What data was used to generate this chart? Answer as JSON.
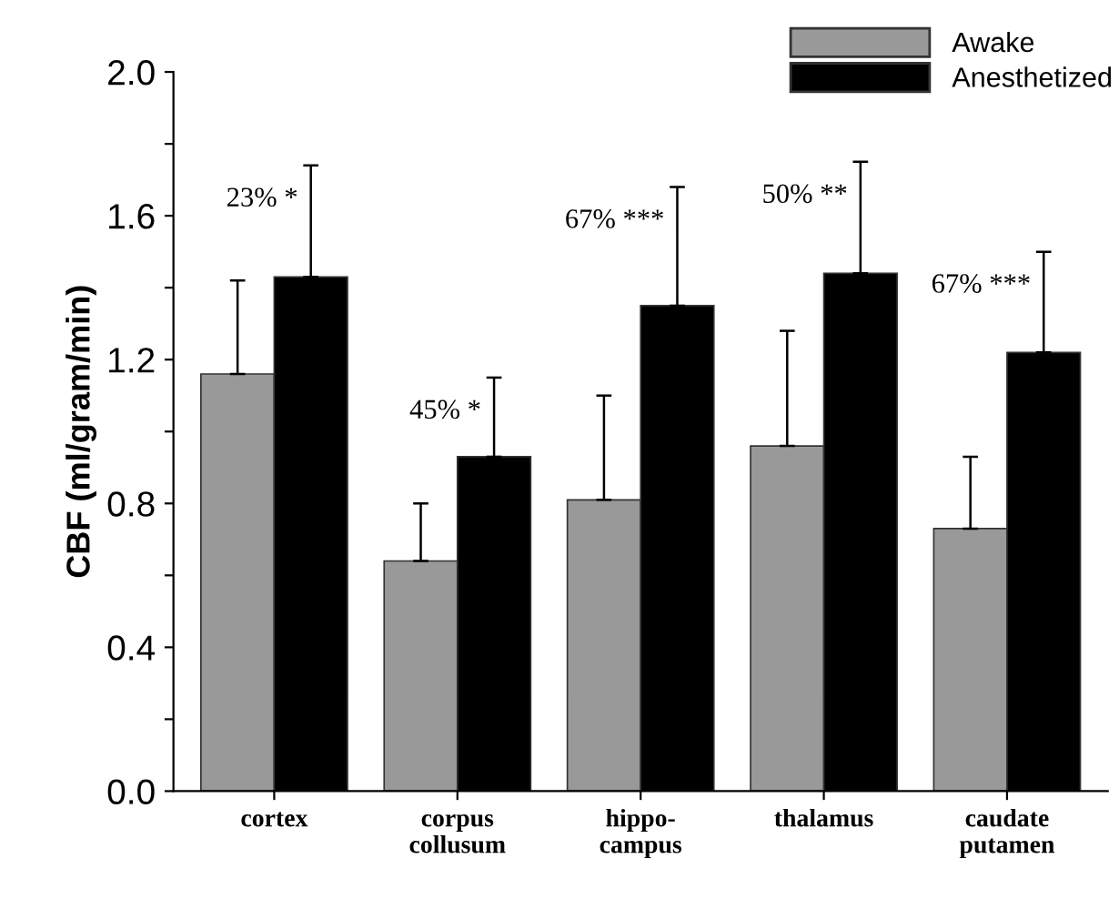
{
  "chart_data": {
    "type": "bar",
    "ylabel": "CBF (ml/gram/min)",
    "categories": [
      "cortex",
      "corpus\ncollusum",
      "hippo-\ncampus",
      "thalamus",
      "caudate\nputamen"
    ],
    "series": [
      {
        "name": "Awake",
        "color": "#999999",
        "values": [
          1.16,
          0.64,
          0.81,
          0.96,
          0.73
        ],
        "errors": [
          [
            1.16,
            1.42
          ],
          [
            0.64,
            0.8
          ],
          [
            0.81,
            1.1
          ],
          [
            0.96,
            1.28
          ],
          [
            0.73,
            0.93
          ]
        ]
      },
      {
        "name": "Anesthetized",
        "color": "#000000",
        "values": [
          1.43,
          0.93,
          1.35,
          1.44,
          1.22
        ],
        "errors": [
          [
            1.43,
            1.74
          ],
          [
            0.93,
            1.15
          ],
          [
            1.35,
            1.68
          ],
          [
            1.44,
            1.75
          ],
          [
            1.22,
            1.5
          ]
        ]
      }
    ],
    "ylim": [
      0,
      2.0
    ],
    "yticks": [
      {
        "value": 0,
        "label": "0.0"
      },
      {
        "value": 0.2,
        "label": null
      },
      {
        "value": 0.4,
        "label": "0.4"
      },
      {
        "value": 0.6,
        "label": null
      },
      {
        "value": 0.8,
        "label": "0.8"
      },
      {
        "value": 1.0,
        "label": null
      },
      {
        "value": 1.2,
        "label": "1.2"
      },
      {
        "value": 1.4,
        "label": null
      },
      {
        "value": 1.6,
        "label": "1.6"
      },
      {
        "value": 1.8,
        "label": null
      },
      {
        "value": 2.0,
        "label": "2.0"
      }
    ],
    "annotations": [
      "23% *",
      "45% *",
      "67% ***",
      "50% **",
      "67% ***"
    ],
    "grid": false,
    "legend": "top right"
  }
}
